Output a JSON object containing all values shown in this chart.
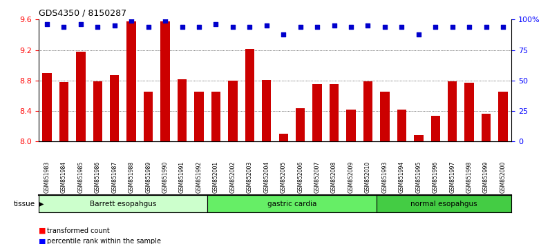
{
  "title": "GDS4350 / 8150287",
  "samples": [
    "GSM851983",
    "GSM851984",
    "GSM851985",
    "GSM851986",
    "GSM851987",
    "GSM851988",
    "GSM851989",
    "GSM851990",
    "GSM851991",
    "GSM851992",
    "GSM852001",
    "GSM852002",
    "GSM852003",
    "GSM852004",
    "GSM852005",
    "GSM852006",
    "GSM852007",
    "GSM852008",
    "GSM852009",
    "GSM852010",
    "GSM851993",
    "GSM851994",
    "GSM851995",
    "GSM851996",
    "GSM851997",
    "GSM851998",
    "GSM851999",
    "GSM852000"
  ],
  "bar_values": [
    8.9,
    8.78,
    9.18,
    8.79,
    8.87,
    9.58,
    8.65,
    9.58,
    8.82,
    8.65,
    8.65,
    8.8,
    9.21,
    8.81,
    8.1,
    8.44,
    8.75,
    8.75,
    8.42,
    8.79,
    8.65,
    8.42,
    8.08,
    8.34,
    8.79,
    8.77,
    8.36,
    8.65
  ],
  "percentile_values": [
    96,
    94,
    96,
    94,
    95,
    99,
    94,
    99,
    94,
    94,
    96,
    94,
    94,
    95,
    88,
    94,
    94,
    95,
    94,
    95,
    94,
    94,
    88,
    94,
    94,
    94,
    94,
    94
  ],
  "bar_color": "#cc0000",
  "dot_color": "#0000cc",
  "ylim_left": [
    8.0,
    9.6
  ],
  "ylim_right": [
    0,
    100
  ],
  "yticks_left": [
    8.0,
    8.4,
    8.8,
    9.2,
    9.6
  ],
  "yticks_right": [
    0,
    25,
    50,
    75,
    100
  ],
  "ytick_labels_right": [
    "0",
    "25",
    "50",
    "75",
    "100%"
  ],
  "grid_lines": [
    8.4,
    8.8,
    9.2
  ],
  "tissue_groups": [
    {
      "label": "Barrett esopahgus",
      "start": 0,
      "end": 10,
      "color": "#ccffcc"
    },
    {
      "label": "gastric cardia",
      "start": 10,
      "end": 20,
      "color": "#66ee66"
    },
    {
      "label": "normal esopahgus",
      "start": 20,
      "end": 28,
      "color": "#44cc44"
    }
  ],
  "tissue_label": "tissue",
  "background_color": "#ffffff",
  "bar_width": 0.55
}
